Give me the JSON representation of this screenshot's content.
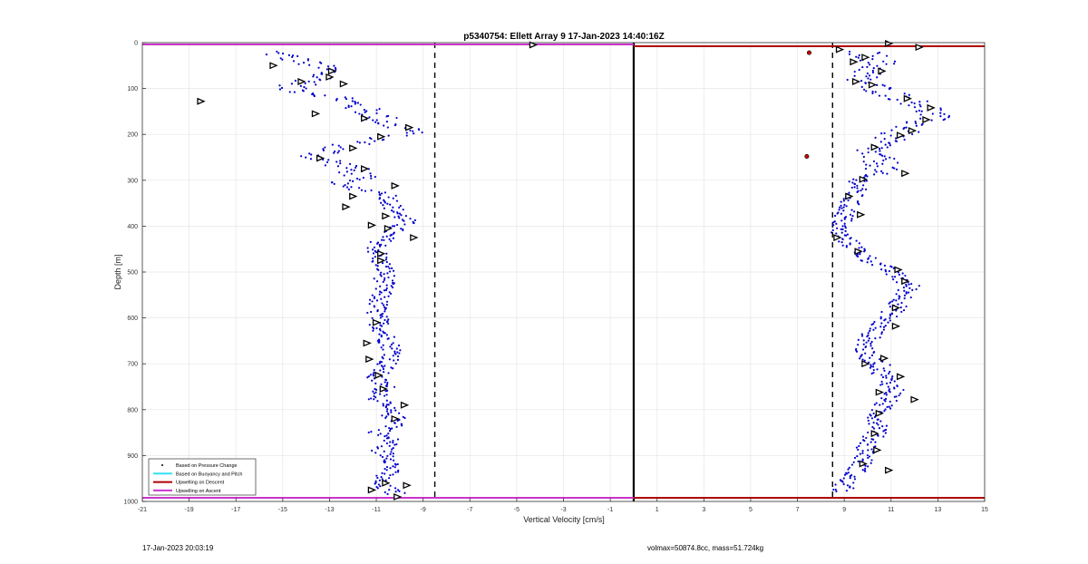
{
  "chart_data": {
    "type": "scatter",
    "title": "p5340754: Ellett Array 9 17-Jan-2023 14:40:16Z",
    "xlabel": "Vertical Velocity [cm/s]",
    "ylabel": "Depth [m]",
    "xlim": [
      -21,
      15
    ],
    "ylim": [
      0,
      1000
    ],
    "y_reversed": true,
    "grid": true,
    "x_ticks": [
      -21,
      -19,
      -17,
      -15,
      -13,
      -11,
      -9,
      -7,
      -5,
      -3,
      -1,
      1,
      3,
      5,
      7,
      9,
      11,
      13,
      15
    ],
    "y_ticks": [
      0,
      100,
      200,
      300,
      400,
      500,
      600,
      700,
      800,
      900,
      1000
    ],
    "legend_position": "bottom-left",
    "legend": [
      {
        "label": "Based on Pressure Change",
        "marker": "dot",
        "color": "#000000"
      },
      {
        "label": "Based on Buoyancy and Pitch",
        "marker": "line",
        "color": "#33e0f0"
      },
      {
        "label": "Upwelling on Descent",
        "marker": "line",
        "color": "#b00000"
      },
      {
        "label": "Upwelling on Ascent",
        "marker": "line",
        "color": "#cc33cc"
      }
    ],
    "reference_lines": {
      "zero_line_x": 0,
      "dashed_lines_x": [
        -8.5,
        8.5
      ],
      "descent_line_depths": [
        8,
        992
      ],
      "ascent_line_depths": [
        4,
        992
      ]
    },
    "series": [
      {
        "color": "#0000cc",
        "marker": "dot",
        "profile_x": [
          -15.5,
          -14.2,
          -13.0,
          -13.5,
          -14.8,
          -12.5,
          -11.8,
          -10.9,
          -10.5,
          -9.3,
          -11.0,
          -12.8,
          -13.6,
          -12.2,
          -11.7,
          -12.8,
          -10.5,
          -10.3,
          -9.7,
          -10.6,
          -11.0,
          -10.8,
          -10.6,
          -10.7,
          -10.9,
          -11.0,
          -10.8,
          -10.5,
          -10.2,
          -10.7,
          -11.1,
          -10.6,
          -10.9,
          -10.4,
          -9.9,
          -10.9,
          -10.3,
          -10.8,
          -10.2,
          -10.4,
          -11.0,
          -10.1
        ],
        "profile_y": [
          20,
          40,
          60,
          80,
          100,
          120,
          140,
          160,
          180,
          190,
          210,
          230,
          250,
          270,
          290,
          310,
          330,
          360,
          390,
          420,
          450,
          480,
          500,
          530,
          560,
          590,
          620,
          650,
          680,
          710,
          730,
          750,
          780,
          810,
          830,
          850,
          870,
          890,
          910,
          930,
          960,
          985
        ]
      },
      {
        "color": "#0000cc",
        "marker": "dot",
        "profile_x": [
          9.8,
          10.5,
          10.2,
          9.6,
          10.4,
          11.5,
          12.5,
          12.8,
          12.0,
          11.2,
          10.5,
          10.0,
          10.8,
          9.8,
          9.5,
          9.2,
          9.0,
          8.7,
          9.3,
          10.0,
          11.0,
          11.8,
          11.5,
          11.0,
          10.4,
          10.0,
          9.8,
          10.5,
          10.6,
          10.9,
          11.2,
          10.8,
          10.5,
          10.4,
          10.6,
          10.2,
          10.0,
          9.9,
          9.6,
          9.1,
          8.9
        ],
        "profile_y": [
          20,
          40,
          60,
          80,
          100,
          120,
          140,
          160,
          180,
          200,
          220,
          240,
          270,
          290,
          320,
          350,
          380,
          410,
          440,
          470,
          500,
          530,
          560,
          590,
          620,
          650,
          680,
          700,
          720,
          740,
          760,
          780,
          800,
          820,
          840,
          860,
          880,
          900,
          930,
          950,
          980
        ]
      }
    ],
    "triangle_marker_series": [
      {
        "color": "#000000",
        "marker": "triangle",
        "x": [
          -15.4,
          -12.9,
          -14.2,
          -12.4,
          -13.0,
          -18.5,
          -13.6,
          -11.5,
          -9.6,
          -10.8,
          -12.0,
          -13.4,
          -11.5,
          -10.2,
          -12.0,
          -12.3,
          -10.6,
          -11.2,
          -10.5,
          -9.4,
          -10.8,
          -10.8,
          -11.0,
          -11.4,
          -11.3,
          -10.9,
          -10.7,
          -9.8,
          -10.2,
          -10.6,
          -9.7,
          -11.2,
          -10.1,
          -4.3
        ],
        "y": [
          50,
          62,
          85,
          90,
          75,
          128,
          155,
          165,
          185,
          205,
          230,
          252,
          275,
          312,
          335,
          358,
          378,
          398,
          405,
          425,
          460,
          475,
          610,
          655,
          690,
          725,
          755,
          790,
          820,
          960,
          965,
          975,
          990,
          5
        ]
      },
      {
        "color": "#000000",
        "marker": "triangle",
        "x": [
          10.9,
          8.8,
          12.2,
          9.4,
          9.9,
          10.6,
          10.2,
          9.5,
          11.7,
          12.7,
          12.5,
          11.9,
          11.4,
          10.3,
          11.6,
          9.8,
          9.2,
          9.7,
          8.7,
          9.6,
          11.3,
          11.6,
          11.2,
          11.2,
          10.7,
          9.9,
          11.4,
          10.5,
          12.0,
          10.5,
          10.3,
          10.4,
          9.8,
          10.9
        ],
        "y": [
          2,
          15,
          10,
          42,
          32,
          62,
          92,
          85,
          122,
          142,
          168,
          192,
          202,
          228,
          285,
          298,
          335,
          375,
          425,
          455,
          495,
          520,
          578,
          618,
          688,
          700,
          728,
          762,
          778,
          808,
          852,
          888,
          918,
          932
        ]
      }
    ],
    "red_markers": {
      "color": "#cc0000",
      "x": [
        7.5,
        7.4
      ],
      "y": [
        22,
        248
      ]
    }
  },
  "footer": {
    "timestamp": "17-Jan-2023 20:03:19",
    "summary": "volmax=50874.8cc, mass=51.724kg"
  }
}
